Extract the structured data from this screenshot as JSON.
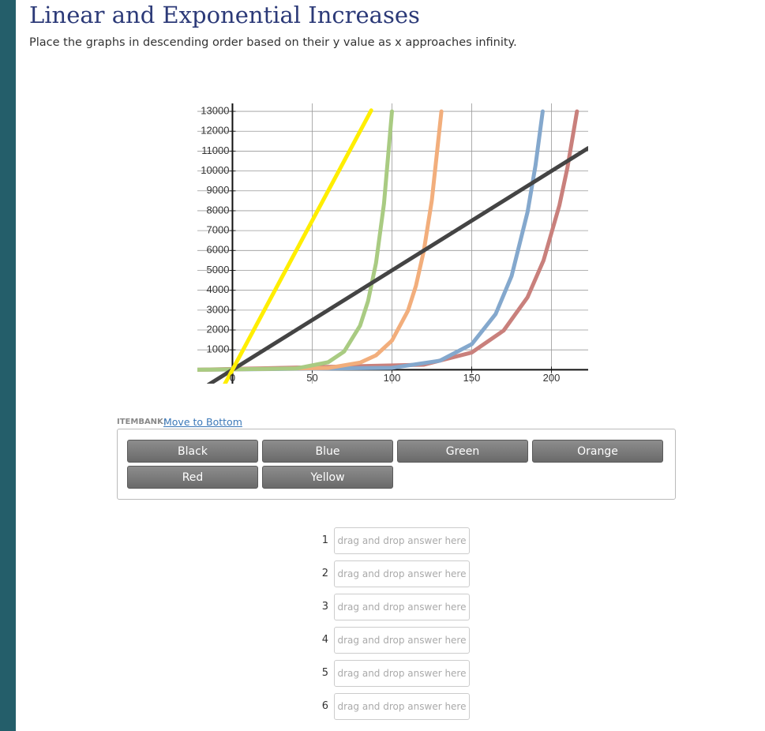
{
  "header": {
    "title": "Linear and Exponential Increases",
    "instructions": "Place the graphs in descending order based on their y value as x approaches infinity."
  },
  "chart_data": {
    "type": "line",
    "xlim": [
      -22,
      223
    ],
    "ylim": [
      -700,
      13400
    ],
    "xticks": [
      0,
      50,
      100,
      150,
      200
    ],
    "yticks": [
      1000,
      2000,
      3000,
      4000,
      5000,
      6000,
      7000,
      8000,
      9000,
      10000,
      11000,
      12000,
      13000
    ],
    "grid": true,
    "series": [
      {
        "color": "#ffee00",
        "x": [
          -5,
          87
        ],
        "values": [
          -750,
          13050
        ]
      },
      {
        "color": "#444444",
        "x": [
          -15,
          223
        ],
        "values": [
          -750,
          11150
        ]
      },
      {
        "color": "#a9cb82",
        "x": [
          -22,
          40,
          60,
          70,
          80,
          85,
          90,
          95,
          100
        ],
        "values": [
          0,
          65,
          377,
          918,
          2216,
          3452,
          5371,
          8357,
          13000
        ]
      },
      {
        "color": "#f2ae7c",
        "x": [
          -22,
          60,
          80,
          90,
          100,
          110,
          115,
          120,
          125,
          131
        ],
        "values": [
          0,
          88,
          359,
          725,
          1466,
          2964,
          4215,
          5995,
          8525,
          13000
        ]
      },
      {
        "color": "#84a8cd",
        "x": [
          -22,
          100,
          130,
          150,
          165,
          175,
          185,
          190,
          194.5
        ],
        "values": [
          0,
          96,
          454,
          1285,
          2803,
          4717,
          7933,
          10286,
          13000
        ]
      },
      {
        "color": "#c9807c",
        "x": [
          -22,
          120,
          150,
          170,
          185,
          195,
          205,
          210,
          216
        ],
        "values": [
          0,
          253,
          868,
          1971,
          3648,
          5494,
          8280,
          10166,
          13000
        ]
      }
    ]
  },
  "itembank": {
    "label": "ITEMBANK:",
    "link": "Move to Bottom",
    "items": [
      "Black",
      "Blue",
      "Green",
      "Orange",
      "Red",
      "Yellow"
    ]
  },
  "answers": [
    {
      "number": "1",
      "placeholder": "drag and drop answer here"
    },
    {
      "number": "2",
      "placeholder": "drag and drop answer here"
    },
    {
      "number": "3",
      "placeholder": "drag and drop answer here"
    },
    {
      "number": "4",
      "placeholder": "drag and drop answer here"
    },
    {
      "number": "5",
      "placeholder": "drag and drop answer here"
    },
    {
      "number": "6",
      "placeholder": "drag and drop answer here"
    }
  ]
}
